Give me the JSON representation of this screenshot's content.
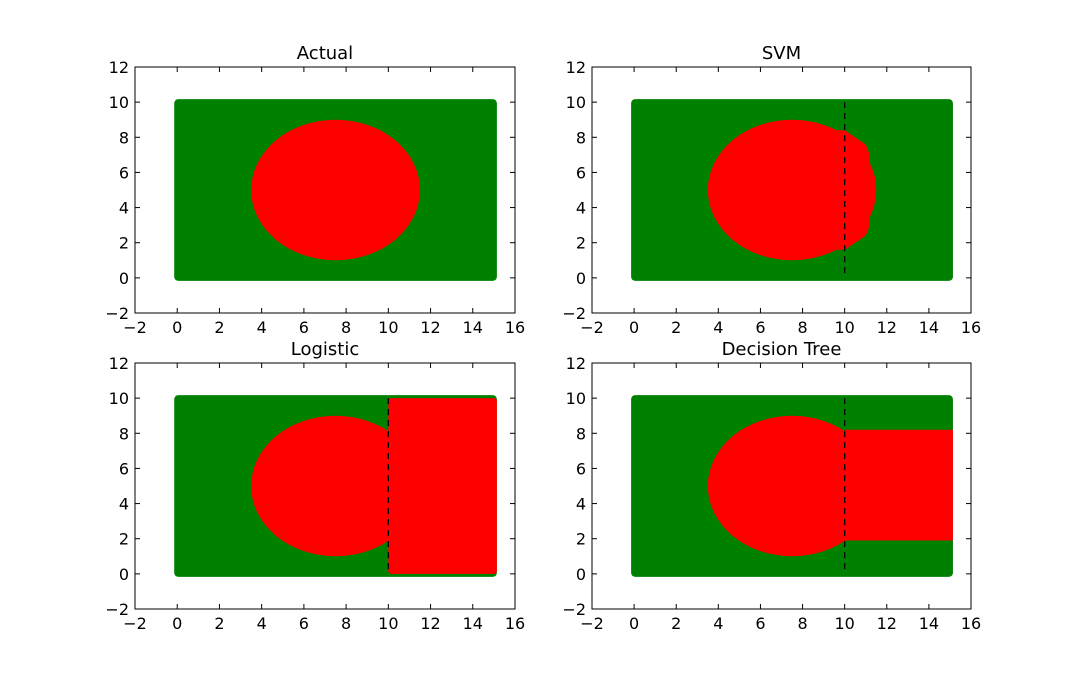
{
  "colors": {
    "class_a": "#008000",
    "class_b": "#ff0000",
    "boundary": "#000000",
    "axes": "#000000"
  },
  "chart_data": [
    {
      "type": "scatter",
      "title": "Actual",
      "xlim": [
        -2,
        16
      ],
      "ylim": [
        -2,
        12
      ],
      "xticks": [
        -2,
        0,
        2,
        4,
        6,
        8,
        10,
        12,
        14,
        16
      ],
      "yticks": [
        -2,
        0,
        2,
        4,
        6,
        8,
        10,
        12
      ],
      "grid": false,
      "rect_region": {
        "x": [
          0,
          15
        ],
        "y": [
          0,
          10
        ],
        "color": "green"
      },
      "red_region": {
        "shape": "ellipse",
        "center": [
          7.5,
          5
        ],
        "radius_x": 4,
        "radius_y": 4
      },
      "boundary_x": null
    },
    {
      "type": "scatter",
      "title": "SVM",
      "xlim": [
        -2,
        16
      ],
      "ylim": [
        -2,
        12
      ],
      "xticks": [
        -2,
        0,
        2,
        4,
        6,
        8,
        10,
        12,
        14,
        16
      ],
      "yticks": [
        -2,
        0,
        2,
        4,
        6,
        8,
        10,
        12
      ],
      "grid": false,
      "rect_region": {
        "x": [
          0,
          15
        ],
        "y": [
          0,
          10
        ],
        "color": "green"
      },
      "red_region": {
        "shape": "polygon",
        "points": [
          [
            10.0,
            8.4
          ],
          [
            10.5,
            8.0
          ],
          [
            11.0,
            7.6
          ],
          [
            11.2,
            7.0
          ],
          [
            11.2,
            6.2
          ],
          [
            11.4,
            5.8
          ],
          [
            11.4,
            4.2
          ],
          [
            11.2,
            3.8
          ],
          [
            11.2,
            3.0
          ],
          [
            11.0,
            2.4
          ],
          [
            10.5,
            2.0
          ],
          [
            10.0,
            1.6
          ]
        ],
        "ellipse_center": [
          7.5,
          5
        ],
        "ellipse_radius": 4
      },
      "boundary_x": 10
    },
    {
      "type": "scatter",
      "title": "Logistic",
      "xlim": [
        -2,
        16
      ],
      "ylim": [
        -2,
        12
      ],
      "xticks": [
        -2,
        0,
        2,
        4,
        6,
        8,
        10,
        12,
        14,
        16
      ],
      "yticks": [
        -2,
        0,
        2,
        4,
        6,
        8,
        10,
        12
      ],
      "grid": false,
      "rect_region": {
        "x": [
          0,
          15
        ],
        "y": [
          0,
          10
        ],
        "color": "green"
      },
      "red_region": {
        "shape": "ellipse_plus_rect",
        "center": [
          7.5,
          5
        ],
        "radius_x": 4,
        "radius_y": 4,
        "rect": {
          "x": [
            10,
            15
          ],
          "y": [
            0,
            10
          ]
        }
      },
      "boundary_x": 10
    },
    {
      "type": "scatter",
      "title": "Decision Tree",
      "xlim": [
        -2,
        16
      ],
      "ylim": [
        -2,
        12
      ],
      "xticks": [
        -2,
        0,
        2,
        4,
        6,
        8,
        10,
        12,
        14,
        16
      ],
      "yticks": [
        -2,
        0,
        2,
        4,
        6,
        8,
        10,
        12
      ],
      "grid": false,
      "rect_region": {
        "x": [
          0,
          15
        ],
        "y": [
          0,
          10
        ],
        "color": "green"
      },
      "red_region": {
        "shape": "ellipse_plus_rect",
        "center": [
          7.5,
          5
        ],
        "radius_x": 4,
        "radius_y": 4,
        "rect": {
          "x": [
            10,
            15
          ],
          "y": [
            1.9,
            8.2
          ]
        }
      },
      "boundary_x": 10
    }
  ]
}
